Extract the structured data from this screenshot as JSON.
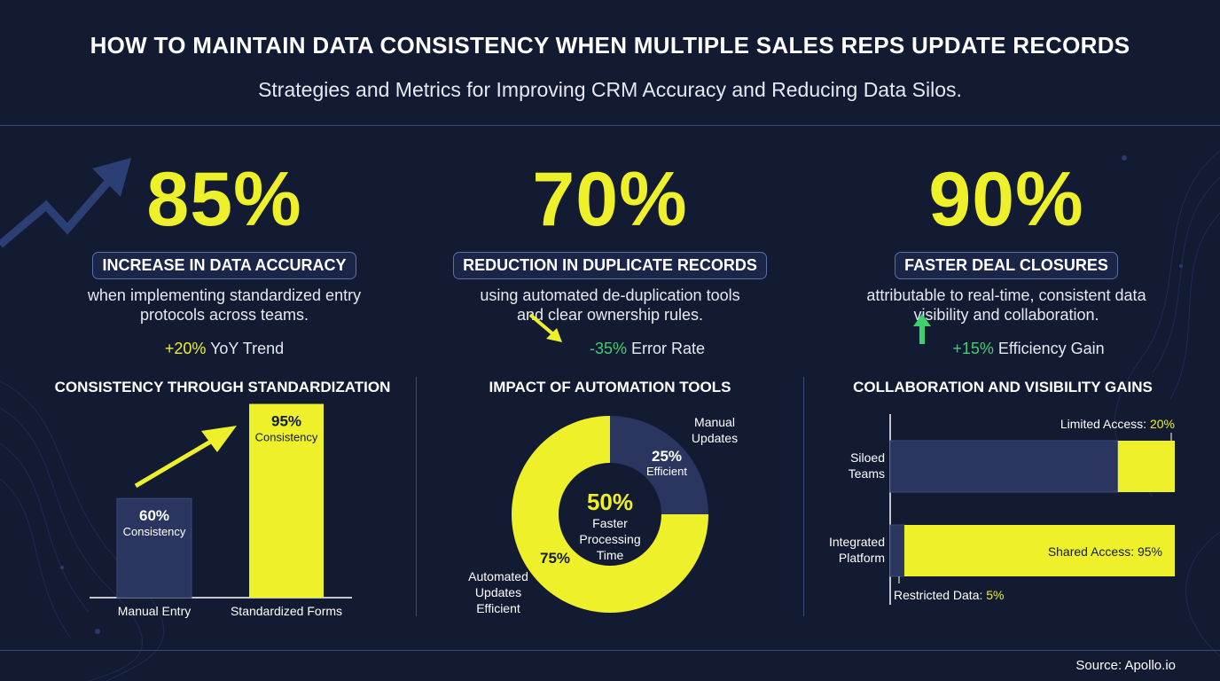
{
  "header": {
    "title": "HOW TO MAINTAIN DATA CONSISTENCY WHEN MULTIPLE SALES REPS UPDATE RECORDS",
    "subtitle": "Strategies and Metrics for Improving CRM Accuracy and Reducing Data Silos."
  },
  "stats": [
    {
      "value": "85%",
      "badge": "INCREASE IN DATA ACCURACY",
      "desc_1": "when implementing standardized entry",
      "desc_2": "protocols across teams.",
      "trend_value": "+20%",
      "trend_label": " YoY Trend"
    },
    {
      "value": "70%",
      "badge": "REDUCTION IN DUPLICATE RECORDS",
      "desc_1": "using automated de-duplication tools",
      "desc_2": "and clear ownership rules.",
      "trend_value": "-35%",
      "trend_label": " Error Rate"
    },
    {
      "value": "90%",
      "badge": "FASTER DEAL CLOSURES",
      "desc_1": "attributable to real-time, consistent data",
      "desc_2": "visibility and collaboration.",
      "trend_value": "+15%",
      "trend_label": " Efficiency Gain"
    }
  ],
  "colors": {
    "accent_yellow": "#eef02a",
    "navy_bar": "#2a3560",
    "green": "#3ecf6e",
    "background": "#131b33"
  },
  "chart_data": [
    {
      "type": "bar",
      "title": "CONSISTENCY THROUGH STANDARDIZATION",
      "categories": [
        "Manual Entry",
        "Standardized Forms"
      ],
      "values": [
        60,
        95
      ],
      "value_labels": [
        "60%",
        "95%"
      ],
      "bar_labels": [
        "Consistency",
        "Consistency"
      ],
      "colors": [
        "#2a3560",
        "#eef02a"
      ],
      "ylim": [
        0,
        100
      ]
    },
    {
      "type": "pie",
      "title": "IMPACT OF AUTOMATION TOOLS",
      "slices": [
        {
          "name": "Manual Updates",
          "value": 25,
          "value_label": "25%",
          "sub_label": "Efficient",
          "color": "#2a3560"
        },
        {
          "name": "Automated Updates Efficient",
          "value": 75,
          "value_label": "75%",
          "color": "#eef02a"
        }
      ],
      "center_value": "50%",
      "center_label_lines": [
        "Faster",
        "Processing",
        "Time"
      ],
      "outer_label_manual": [
        "Manual",
        "Updates"
      ],
      "outer_label_auto": [
        "Automated",
        "Updates",
        "Efficient"
      ]
    },
    {
      "type": "bar",
      "orientation": "horizontal-stacked",
      "title": "COLLABORATION AND VISIBILITY GAINS",
      "categories": [
        "Siloed Teams",
        "Integrated Platform"
      ],
      "category_lines": [
        [
          "Siloed",
          "Teams"
        ],
        [
          "Integrated",
          "Platform"
        ]
      ],
      "series": [
        {
          "name": "Restricted",
          "values": [
            80,
            5
          ],
          "color": "#2a3560"
        },
        {
          "name": "Access",
          "values": [
            20,
            95
          ],
          "color": "#eef02a"
        }
      ],
      "annotations": {
        "limited_prefix": "Limited Access: ",
        "limited_value": "20%",
        "shared": "Shared Access: 95%",
        "restricted_prefix": "Restricted Data: ",
        "restricted_value": "5%"
      },
      "xlim": [
        0,
        100
      ]
    }
  ],
  "footer": {
    "source": "Source: Apollo.io"
  }
}
